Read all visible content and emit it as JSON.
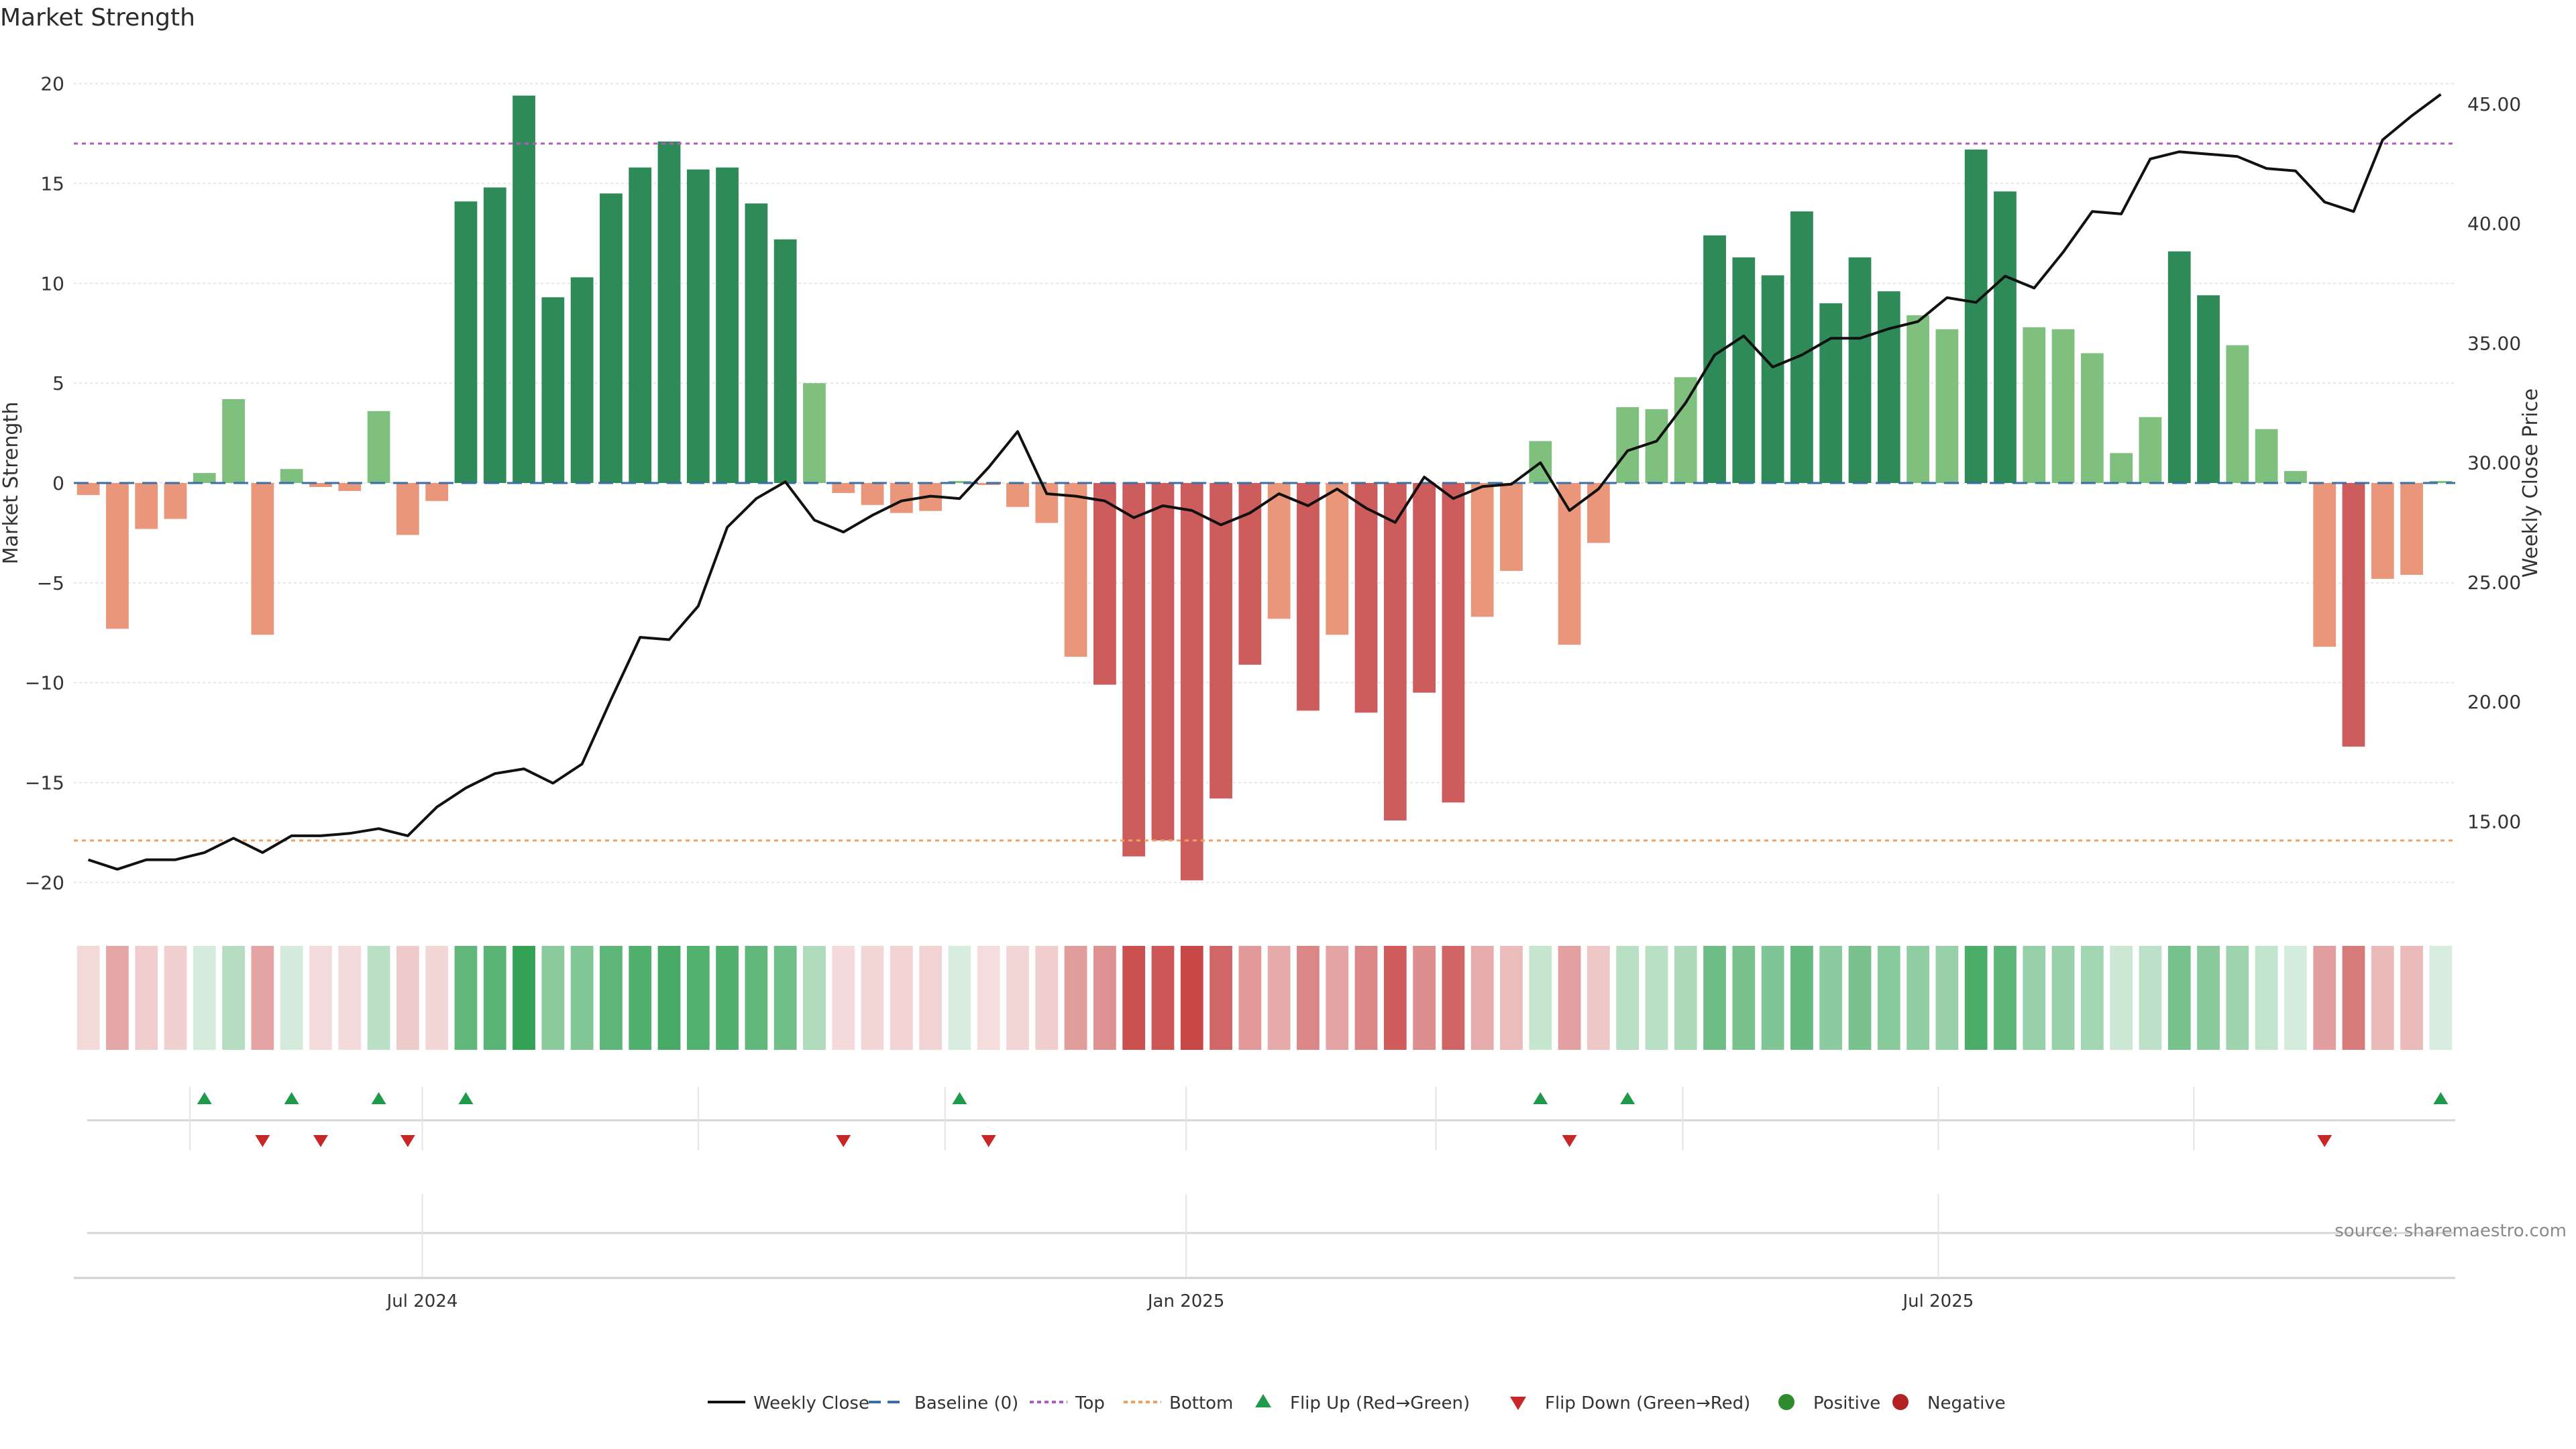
{
  "title": "Market Strength",
  "source": "source: sharemaestro.com",
  "colors": {
    "strong_pos": "#2e8b57",
    "weak_pos": "#80c07e",
    "strong_neg": "#cd5c5c",
    "weak_neg": "#e9967a",
    "flip_up": "#1e9a4a",
    "flip_down": "#c62828",
    "close_line": "#111111",
    "baseline": "#3a6ea5",
    "top_line": "#b05bc0",
    "bottom_line": "#f0a060"
  },
  "chart_data": {
    "type": "bar",
    "title": "Market Strength",
    "ylabel": "Market Strength",
    "y2label": "Weekly Close Price",
    "ylim": [
      -21.5,
      21.5
    ],
    "y2lim": [
      11.2,
      47.1
    ],
    "yticks": [
      -20,
      -15,
      -10,
      -5,
      0,
      5,
      10,
      15,
      20
    ],
    "y2ticks": [
      15,
      20,
      25,
      30,
      35,
      40,
      45
    ],
    "y2tick_labels": [
      "15.00",
      "20.00",
      "25.00",
      "30.00",
      "35.00",
      "40.00",
      "45.00"
    ],
    "xtick_labels": [
      "Jul 2024",
      "Jan 2025",
      "Jul 2025"
    ],
    "xtick_positions": [
      12,
      38.3,
      64.2
    ],
    "top_level": 17.0,
    "bottom_level": -17.9,
    "baseline": 0,
    "strength": [
      -0.6,
      -7.3,
      -2.3,
      -1.8,
      0.5,
      4.2,
      -7.6,
      0.7,
      -0.2,
      -0.4,
      3.6,
      -2.6,
      -0.9,
      14.1,
      14.8,
      19.4,
      9.3,
      10.3,
      14.5,
      15.8,
      17.1,
      15.7,
      15.8,
      14.0,
      12.2,
      5.0,
      -0.5,
      -1.1,
      -1.5,
      -1.4,
      0.1,
      -0.1,
      -1.2,
      -2.0,
      -8.7,
      -10.1,
      -18.7,
      -17.9,
      -19.9,
      -15.8,
      -9.1,
      -6.8,
      -11.4,
      -7.6,
      -11.5,
      -16.9,
      -10.5,
      -16.0,
      -6.7,
      -4.4,
      2.1,
      -8.1,
      -3.0,
      3.8,
      3.7,
      5.3,
      12.4,
      11.3,
      10.4,
      13.6,
      9.0,
      11.3,
      9.6,
      8.4,
      7.7,
      16.7,
      14.6,
      7.8,
      7.7,
      6.5,
      1.5,
      3.3,
      11.6,
      9.4,
      6.9,
      2.7,
      0.6,
      -8.2,
      -13.2,
      -4.8,
      -4.6,
      0.1
    ],
    "weekly_close": [
      13.4,
      13.0,
      13.4,
      13.4,
      13.7,
      14.3,
      13.7,
      14.4,
      14.4,
      14.5,
      14.7,
      14.4,
      15.6,
      16.4,
      17.0,
      17.2,
      16.6,
      17.4,
      20.1,
      22.7,
      22.6,
      24.0,
      27.3,
      28.5,
      29.2,
      27.6,
      27.1,
      27.8,
      28.4,
      28.6,
      28.5,
      29.8,
      31.3,
      28.7,
      28.6,
      28.4,
      27.7,
      28.2,
      28.0,
      27.4,
      27.9,
      28.7,
      28.2,
      28.9,
      28.1,
      27.5,
      29.4,
      28.5,
      29.0,
      29.1,
      30.0,
      28.0,
      28.9,
      30.5,
      30.9,
      32.5,
      34.5,
      35.3,
      34.0,
      34.5,
      35.2,
      35.2,
      35.6,
      35.9,
      36.9,
      36.7,
      37.8,
      37.3,
      38.8,
      40.5,
      40.4,
      42.7,
      43.0,
      42.9,
      42.8,
      42.3,
      42.2,
      40.9,
      40.5,
      43.5,
      44.5,
      45.4
    ],
    "flip_up_weeks": [
      4,
      7,
      10,
      13,
      30,
      50,
      53,
      81
    ],
    "flip_down_weeks": [
      6,
      8,
      11,
      26,
      31,
      51,
      77
    ],
    "legend": [
      "Weekly Close",
      "Baseline (0)",
      "Top",
      "Bottom",
      "Flip Up (Red→Green)",
      "Flip Down (Green→Red)",
      "Positive",
      "Negative"
    ],
    "legend_position": "bottom"
  }
}
